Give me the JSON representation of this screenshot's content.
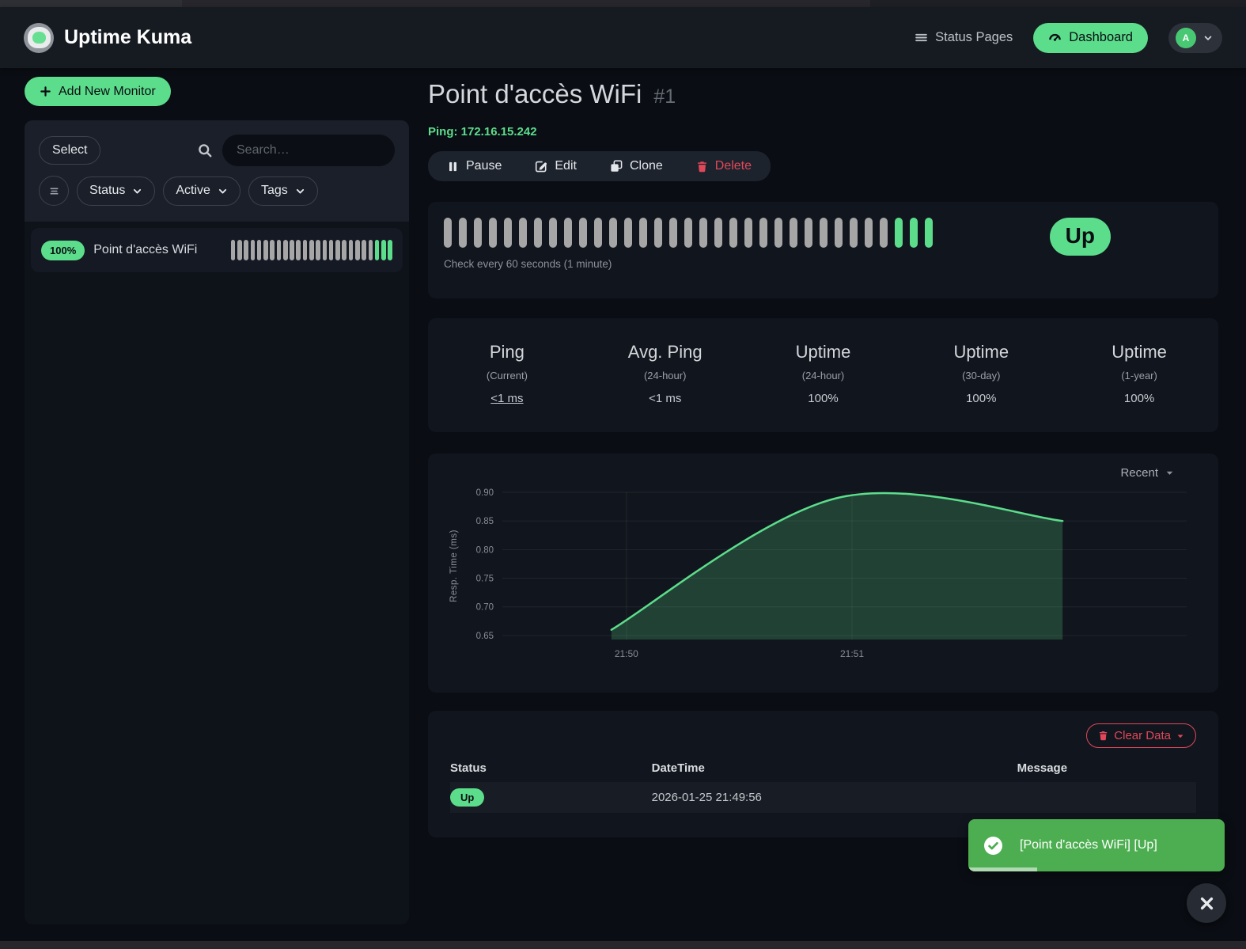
{
  "navbar": {
    "brand": "Uptime Kuma",
    "status_pages_label": "Status Pages",
    "dashboard_label": "Dashboard",
    "avatar_letter": "A"
  },
  "sidebar": {
    "add_monitor_label": "Add New Monitor",
    "select_label": "Select",
    "search_placeholder": "Search…",
    "filters": {
      "status": "Status",
      "active": "Active",
      "tags": "Tags"
    },
    "monitors": [
      {
        "uptime_badge": "100%",
        "name": "Point d'accès WiFi",
        "beats": {
          "gray": 22,
          "green": 3
        }
      }
    ]
  },
  "monitor": {
    "title": "Point d'accès WiFi",
    "id_label": "#1",
    "ping_line": "Ping: 172.16.15.242",
    "actions": {
      "pause": "Pause",
      "edit": "Edit",
      "clone": "Clone",
      "delete": "Delete"
    },
    "heartbeat": {
      "gray": 30,
      "green": 3,
      "interval_text": "Check every 60 seconds (1 minute)",
      "status": "Up"
    },
    "stats": [
      {
        "title": "Ping",
        "subtitle": "(Current)",
        "value": "<1 ms"
      },
      {
        "title": "Avg. Ping",
        "subtitle": "(24-hour)",
        "value": "<1 ms"
      },
      {
        "title": "Uptime",
        "subtitle": "(24-hour)",
        "value": "100%"
      },
      {
        "title": "Uptime",
        "subtitle": "(30-day)",
        "value": "100%"
      },
      {
        "title": "Uptime",
        "subtitle": "(1-year)",
        "value": "100%"
      }
    ],
    "table": {
      "clear_data_label": "Clear Data",
      "headers": [
        "Status",
        "DateTime",
        "Message"
      ],
      "rows": [
        {
          "status": "Up",
          "datetime": "2026-01-25 21:49:56",
          "message": ""
        }
      ]
    }
  },
  "chart_data": {
    "type": "area",
    "ylabel": "Resp. Time (ms)",
    "period_label": "Recent",
    "grid": true,
    "legend_position": "top-right",
    "y_ticks": [
      0.65,
      0.7,
      0.75,
      0.8,
      0.85,
      0.9
    ],
    "y_domain": [
      0.643,
      0.9
    ],
    "x_ticks": [
      {
        "label": "21:50",
        "t": 33
      },
      {
        "label": "21:51",
        "t": 93
      }
    ],
    "t_domain": [
      0,
      182
    ],
    "series": [
      {
        "name": "Resp. Time (ms)",
        "points": [
          {
            "x": "21:49:56",
            "t": 29,
            "y": 0.66
          },
          {
            "x": "21:50:56",
            "t": 89,
            "y": 0.89
          },
          {
            "x": "21:51:56",
            "t": 149,
            "y": 0.85
          }
        ]
      }
    ],
    "line_color": "#5cdd8b",
    "fill_color": "rgba(92,221,139,0.22)"
  },
  "toast": {
    "message": "[Point d'accès WiFi] [Up]"
  },
  "colors": {
    "primary": "#5cdd8b",
    "danger": "#e0485a",
    "toast_green": "#4cae50"
  }
}
